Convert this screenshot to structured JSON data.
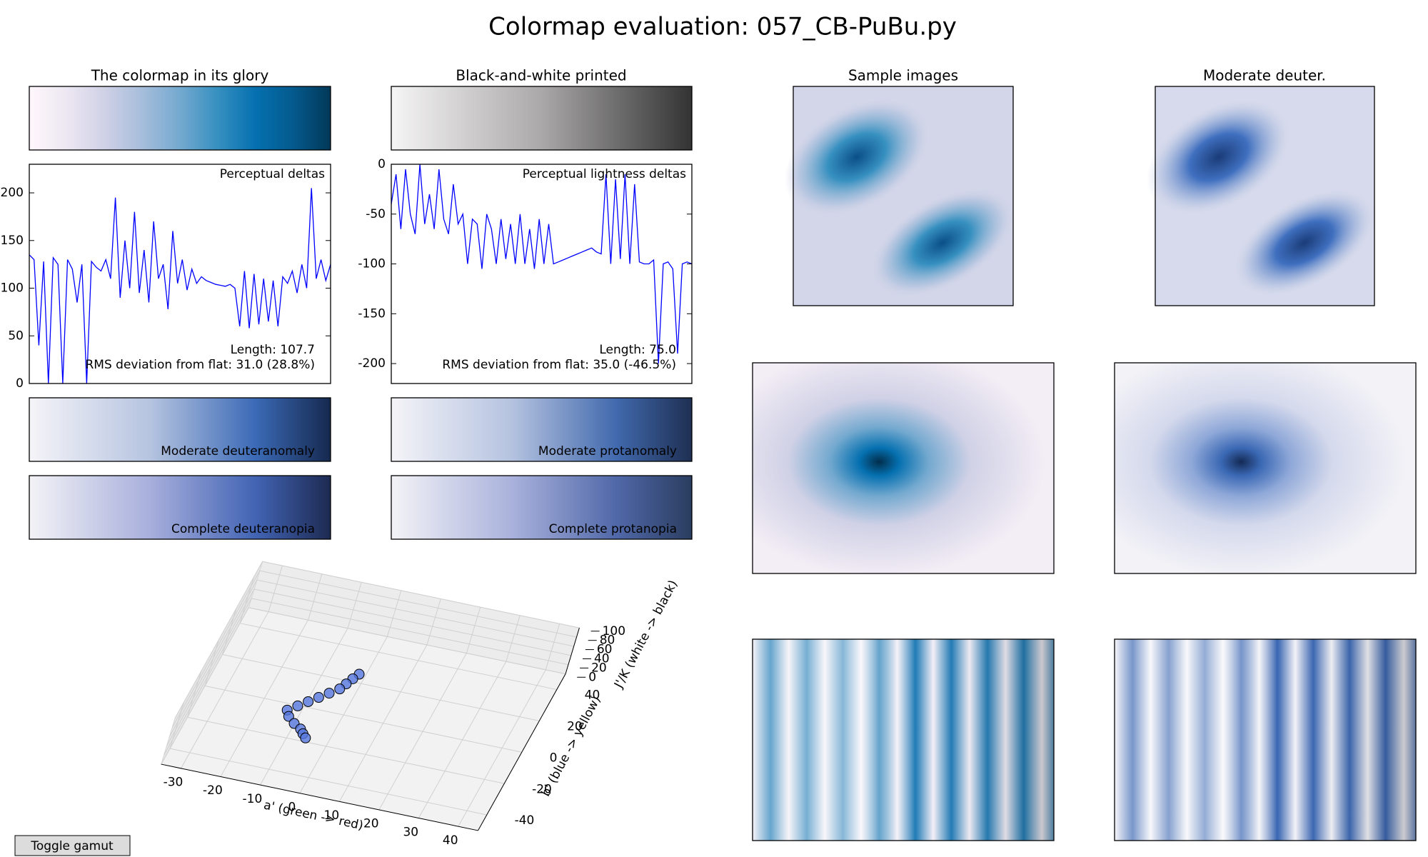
{
  "title": "Colormap evaluation: 057_CB-PuBu.py",
  "panels": {
    "colormap": "The colormap in its glory",
    "bw": "Black-and-white printed",
    "samples": "Sample images",
    "deuter": "Moderate deuter.",
    "mod_deuteranomaly": "Moderate deuteranomaly",
    "complete_deuteranopia": "Complete deuteranopia",
    "mod_protanomaly": "Moderate protanomaly",
    "complete_protanopia": "Complete protanopia"
  },
  "chart_data": [
    {
      "type": "line",
      "annotation": "Perceptual deltas",
      "notes": [
        "Length: 107.7",
        "RMS deviation from flat: 31.0 (28.8%)"
      ],
      "values": [
        135,
        130,
        40,
        128,
        0,
        132,
        125,
        0,
        130,
        120,
        85,
        125,
        0,
        128,
        122,
        118,
        130,
        110,
        195,
        90,
        150,
        100,
        180,
        95,
        140,
        85,
        170,
        110,
        125,
        78,
        160,
        105,
        130,
        98,
        120,
        105,
        112,
        108,
        106,
        104,
        103,
        102,
        104,
        100,
        60,
        118,
        58,
        115,
        62,
        110,
        65,
        108,
        60,
        112,
        105,
        118,
        95,
        125,
        100,
        205,
        110,
        130,
        108,
        125
      ],
      "color": "#0000ff",
      "ylim": [
        0,
        230
      ],
      "yticks": [
        0,
        50,
        100,
        150,
        200
      ]
    },
    {
      "type": "line",
      "annotation": "Perceptual lightness deltas",
      "notes": [
        "Length: 75.0",
        "RMS deviation from flat: 35.0 (-46.5%)"
      ],
      "values": [
        -40,
        -10,
        -65,
        -5,
        -50,
        -70,
        0,
        -60,
        -30,
        -65,
        -5,
        -55,
        -70,
        -20,
        -60,
        -50,
        -100,
        -55,
        -60,
        -105,
        -50,
        -65,
        -100,
        -55,
        -95,
        -60,
        -100,
        -50,
        -100,
        -65,
        -105,
        -55,
        -100,
        -60,
        -100,
        -98,
        -96,
        -94,
        -92,
        -90,
        -88,
        -86,
        -84,
        -88,
        -90,
        -10,
        -100,
        -15,
        -95,
        -10,
        -100,
        -20,
        -98,
        -100,
        -100,
        -96,
        -200,
        -100,
        -98,
        -105,
        -190,
        -100,
        -98,
        -100
      ],
      "color": "#0000ff",
      "ylim": [
        -220,
        0
      ],
      "yticks": [
        -200,
        -150,
        -100,
        -50,
        0
      ]
    },
    {
      "type": "scatter3d",
      "x_label": "a' (green -> red)",
      "y_label": "b' (blue -> yellow)",
      "z_label": "J'/K (white -> black)",
      "x": [
        1,
        0,
        -1,
        -2,
        -4,
        -6,
        -8,
        -10,
        -12,
        -11,
        -9,
        -7,
        -6,
        -5
      ],
      "y": [
        -2,
        -4,
        -6,
        -8,
        -10,
        -12,
        -14,
        -16,
        -18,
        -20,
        -22,
        -23,
        -24,
        -25
      ],
      "z": [
        97,
        92,
        86,
        80,
        74,
        68,
        62,
        56,
        50,
        45,
        40,
        35,
        30,
        26
      ],
      "color": "#5577dd",
      "xlim": [
        -35,
        45
      ],
      "ylim": [
        -50,
        50
      ],
      "zlim": [
        0,
        100
      ],
      "xticks": [
        -30,
        -20,
        -10,
        0,
        10,
        20,
        30,
        40
      ],
      "yticks": [
        -40,
        -20,
        0,
        20,
        40
      ],
      "zticks": [
        0,
        20,
        40,
        60,
        80,
        100
      ]
    }
  ],
  "button": "Toggle gamut"
}
